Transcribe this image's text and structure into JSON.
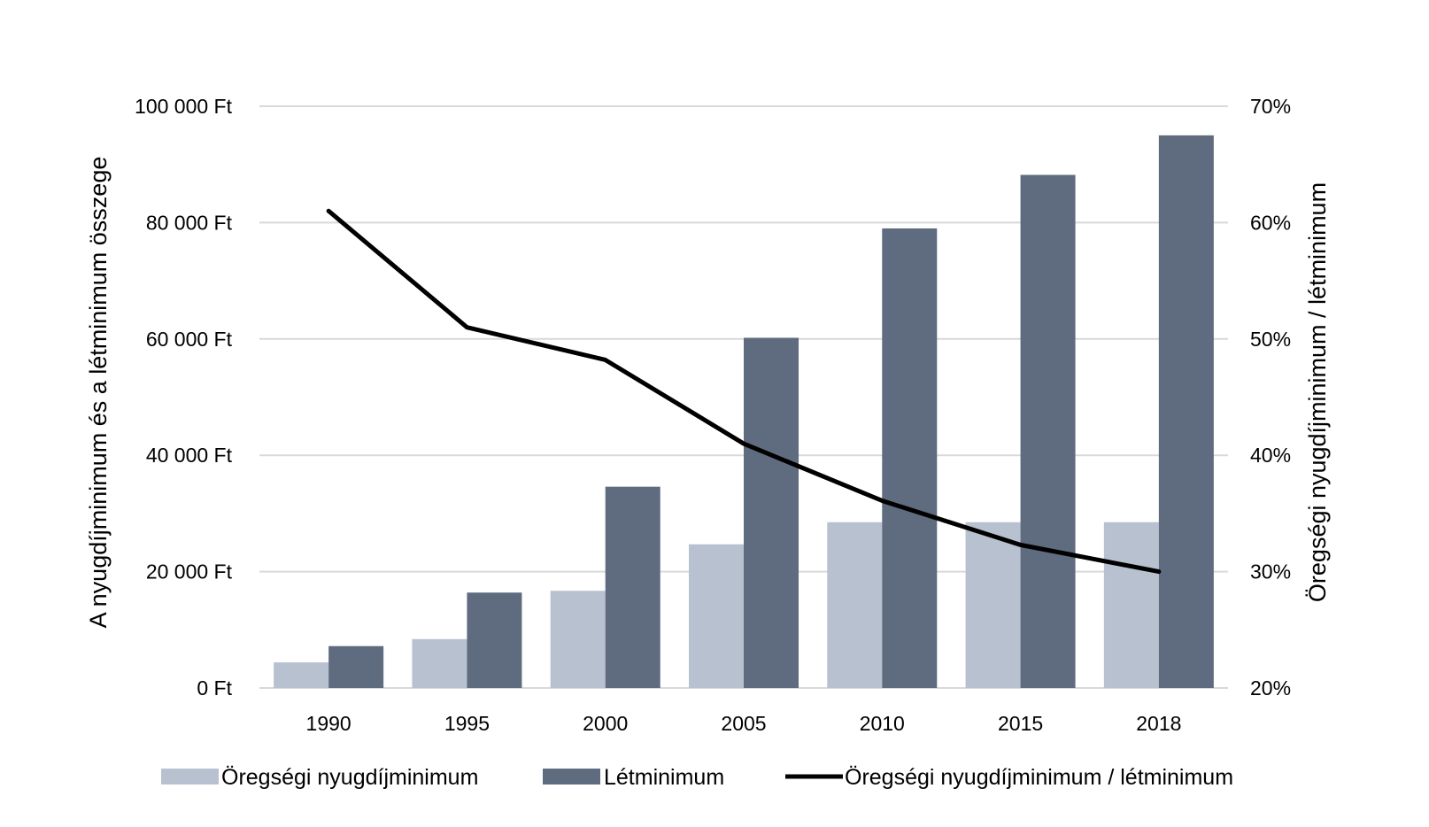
{
  "chart_data": {
    "type": "bar",
    "title": "",
    "categories": [
      "1990",
      "1995",
      "2000",
      "2005",
      "2010",
      "2015",
      "2018"
    ],
    "series": [
      {
        "name": "Öregségi nyugdíjminimum",
        "type": "bar",
        "axis": "left",
        "color": "#b8c1d0",
        "values": [
          4400,
          8400,
          16700,
          24700,
          28500,
          28500,
          28500
        ]
      },
      {
        "name": "Létminimum",
        "type": "bar",
        "axis": "left",
        "color": "#5f6b7f",
        "values": [
          7200,
          16400,
          34600,
          60200,
          79000,
          88200,
          95000
        ]
      },
      {
        "name": "Öregségi nyugdíjminimum / létminimum",
        "type": "line",
        "axis": "right",
        "color": "#000000",
        "values": [
          61,
          51,
          48.2,
          41,
          36.1,
          32.3,
          30
        ]
      }
    ],
    "y_left": {
      "label": "A nyugdíjminimum és a létminimum összege",
      "ylim": [
        0,
        100000
      ],
      "ticks": [
        0,
        20000,
        40000,
        60000,
        80000,
        100000
      ],
      "tick_labels": [
        "0 Ft",
        "20 000 Ft",
        "40 000 Ft",
        "60 000 Ft",
        "80 000 Ft",
        "100 000 Ft"
      ]
    },
    "y_right": {
      "label": "Öregségi nyugdíjminimum / létminimum",
      "ylim": [
        20,
        70
      ],
      "ticks": [
        20,
        30,
        40,
        50,
        60,
        70
      ],
      "tick_labels": [
        "20%",
        "30%",
        "40%",
        "50%",
        "60%",
        "70%"
      ]
    },
    "grid": true,
    "legend": "bottom"
  }
}
